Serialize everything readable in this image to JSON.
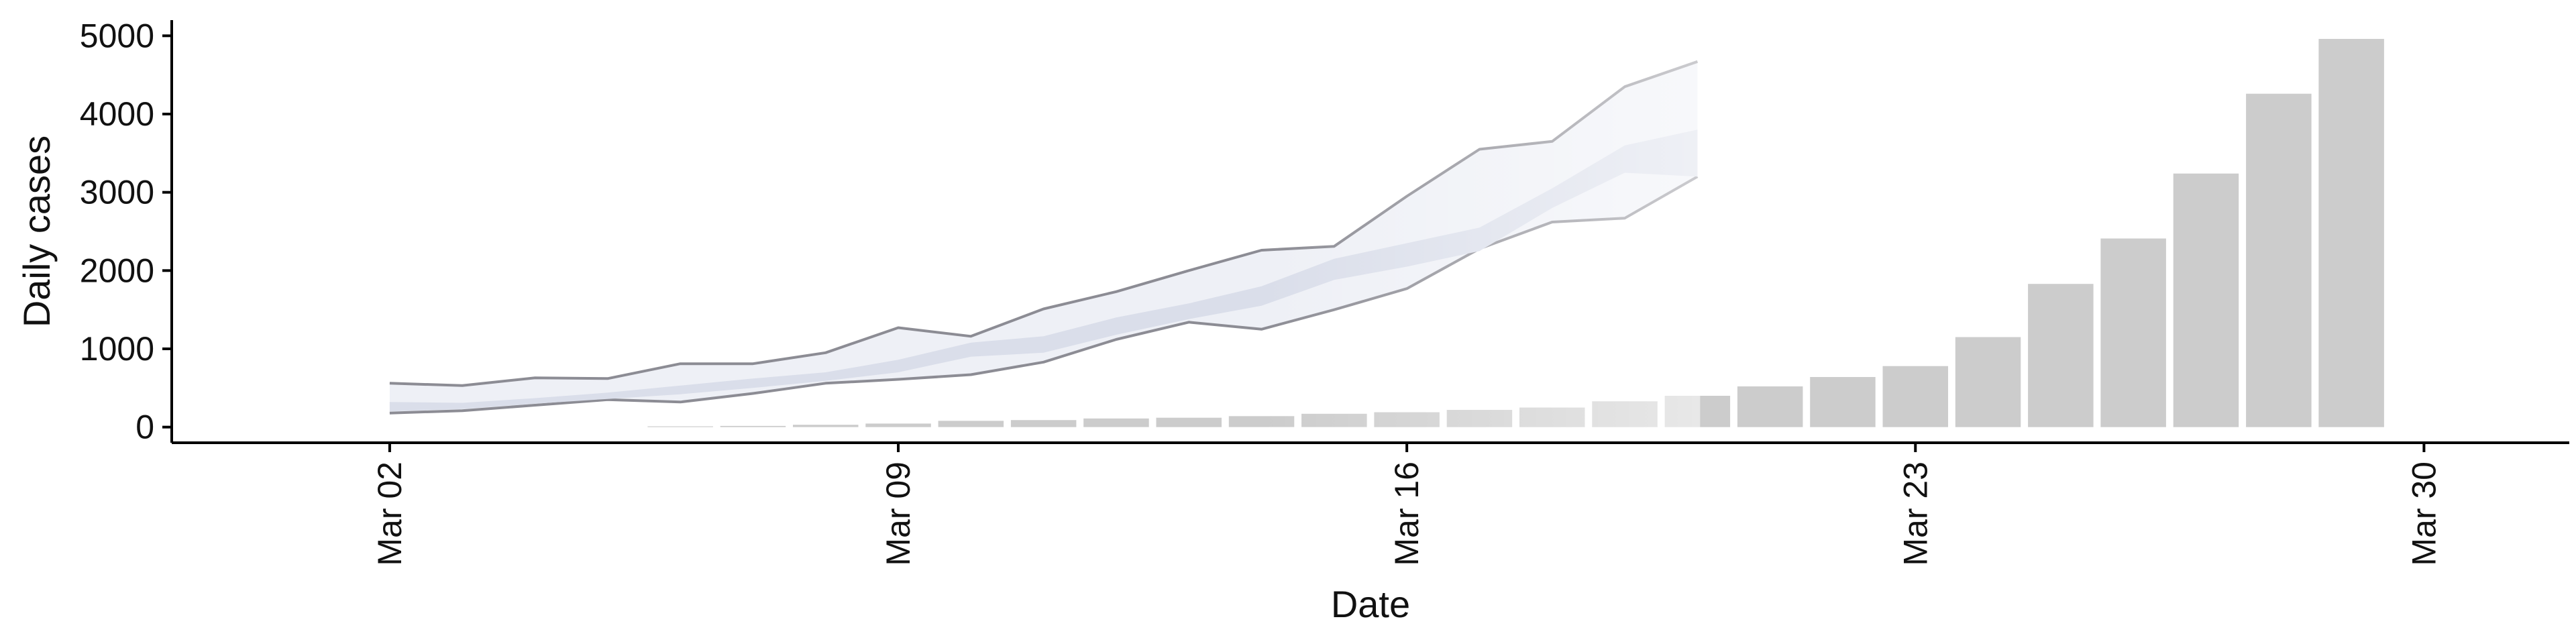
{
  "chart_data": {
    "type": "bar",
    "xlabel": "Date",
    "ylabel": "Daily cases",
    "ylim": [
      -200,
      5200
    ],
    "yticks": [
      0,
      1000,
      2000,
      3000,
      4000,
      5000
    ],
    "y_tick_labels": [
      "0",
      "1000",
      "2000",
      "3000",
      "4000",
      "5000"
    ],
    "xticks": [
      "2020-03-02",
      "2020-03-09",
      "2020-03-16",
      "2020-03-23",
      "2020-03-30"
    ],
    "x_tick_labels": [
      "Mar 02",
      "Mar 09",
      "Mar 16",
      "Mar 23",
      "Mar 30"
    ],
    "xlim": [
      "2020-02-28",
      "2020-04-01"
    ],
    "grid": false,
    "bars": {
      "color": "#cccccc",
      "x": [
        "2020-03-06",
        "2020-03-07",
        "2020-03-08",
        "2020-03-09",
        "2020-03-10",
        "2020-03-11",
        "2020-03-12",
        "2020-03-13",
        "2020-03-14",
        "2020-03-15",
        "2020-03-16",
        "2020-03-17",
        "2020-03-18",
        "2020-03-19",
        "2020-03-20",
        "2020-03-21",
        "2020-03-22",
        "2020-03-23",
        "2020-03-24",
        "2020-03-25",
        "2020-03-26",
        "2020-03-27",
        "2020-03-28",
        "2020-03-29"
      ],
      "values": [
        10,
        15,
        30,
        45,
        80,
        90,
        110,
        120,
        140,
        170,
        190,
        220,
        250,
        330,
        400,
        520,
        640,
        780,
        1150,
        1830,
        2410,
        3240,
        4260,
        4960
      ]
    },
    "bands": [
      {
        "x": [
          "2020-03-02",
          "2020-03-03",
          "2020-03-04",
          "2020-03-05",
          "2020-03-06",
          "2020-03-07",
          "2020-03-08",
          "2020-03-09",
          "2020-03-10",
          "2020-03-11",
          "2020-03-12",
          "2020-03-13",
          "2020-03-14",
          "2020-03-15",
          "2020-03-16",
          "2020-03-17",
          "2020-03-18",
          "2020-03-19",
          "2020-03-20"
        ],
        "lower": [
          180,
          210,
          280,
          350,
          320,
          430,
          560,
          610,
          670,
          830,
          1120,
          1340,
          1250,
          1500,
          1770,
          2280,
          2620,
          2670,
          3200
        ],
        "upper": [
          560,
          530,
          630,
          620,
          810,
          810,
          950,
          1270,
          1160,
          1510,
          1730,
          2000,
          2260,
          2310,
          2950,
          3550,
          3650,
          4350,
          4670
        ],
        "fill": "#eef0f6",
        "stroke": "#8c8c94"
      },
      {
        "x": [
          "2020-03-02",
          "2020-03-03",
          "2020-03-04",
          "2020-03-05",
          "2020-03-06",
          "2020-03-07",
          "2020-03-08",
          "2020-03-09",
          "2020-03-10",
          "2020-03-11",
          "2020-03-12",
          "2020-03-13",
          "2020-03-14",
          "2020-03-15",
          "2020-03-16",
          "2020-03-17",
          "2020-03-18",
          "2020-03-19",
          "2020-03-20"
        ],
        "lower": [
          200,
          230,
          300,
          360,
          420,
          500,
          590,
          700,
          900,
          950,
          1180,
          1380,
          1550,
          1880,
          2050,
          2250,
          2800,
          3250,
          3200
        ],
        "upper": [
          320,
          310,
          370,
          440,
          530,
          620,
          700,
          860,
          1080,
          1160,
          1400,
          1580,
          1800,
          2150,
          2350,
          2550,
          3050,
          3600,
          3800
        ],
        "fill": "#dadeea",
        "stroke": "none"
      }
    ]
  }
}
